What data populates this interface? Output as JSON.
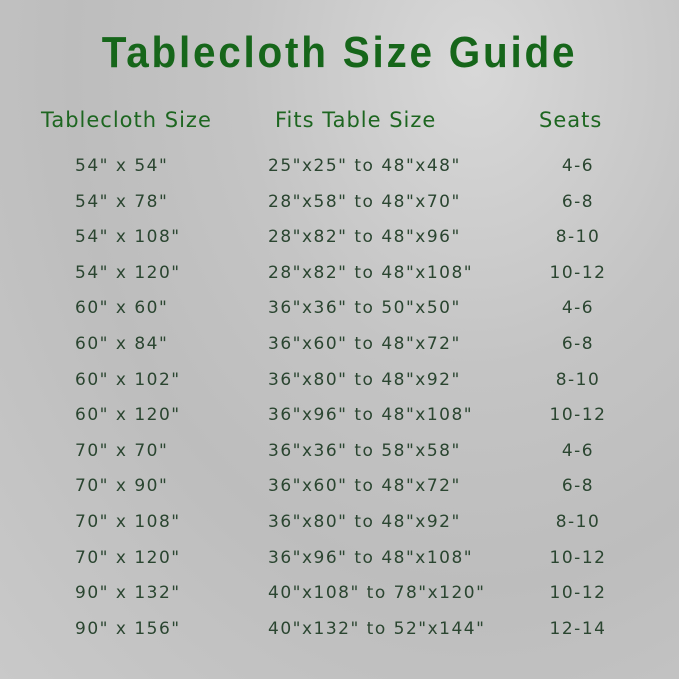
{
  "title": "Tablecloth Size Guide",
  "headers": [
    "Tablecloth Size",
    "Fits Table Size",
    "Seats"
  ],
  "colors": {
    "title": "#16661a",
    "header": "#1d6620",
    "text": "#2a4530"
  },
  "rows": [
    [
      "54\" x 54\"",
      "25\"x25\" to 48\"x48\"",
      "4-6"
    ],
    [
      "54\" x 78\"",
      "28\"x58\" to 48\"x70\"",
      "6-8"
    ],
    [
      "54\" x 108\"",
      "28\"x82\" to 48\"x96\"",
      "8-10"
    ],
    [
      "54\" x 120\"",
      "28\"x82\" to 48\"x108\"",
      "10-12"
    ],
    [
      "60\" x 60\"",
      "36\"x36\" to 50\"x50\"",
      "4-6"
    ],
    [
      "60\" x 84\"",
      "36\"x60\" to 48\"x72\"",
      "6-8"
    ],
    [
      "60\" x 102\"",
      "36\"x80\" to 48\"x92\"",
      "8-10"
    ],
    [
      "60\" x 120\"",
      "36\"x96\" to 48\"x108\"",
      "10-12"
    ],
    [
      "70\" x 70\"",
      "36\"x36\" to 58\"x58\"",
      "4-6"
    ],
    [
      "70\" x 90\"",
      "36\"x60\" to 48\"x72\"",
      "6-8"
    ],
    [
      "70\" x 108\"",
      "36\"x80\" to 48\"x92\"",
      "8-10"
    ],
    [
      "70\" x 120\"",
      "36\"x96\" to 48\"x108\"",
      "10-12"
    ],
    [
      "90\" x 132\"",
      "40\"x108\" to 78\"x120\"",
      "10-12"
    ],
    [
      "90\" x 156\"",
      "40\"x132\" to 52\"x144\"",
      "12-14"
    ]
  ]
}
